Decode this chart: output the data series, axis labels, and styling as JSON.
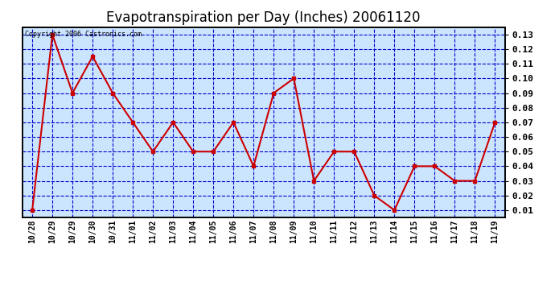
{
  "title": "Evapotranspiration per Day (Inches) 20061120",
  "copyright_text": "Copyright 2006 Castronics.com",
  "x_labels": [
    "10/28",
    "10/29",
    "10/29",
    "10/30",
    "10/31",
    "11/01",
    "11/02",
    "11/03",
    "11/04",
    "11/05",
    "11/06",
    "11/07",
    "11/08",
    "11/09",
    "11/10",
    "11/11",
    "11/12",
    "11/13",
    "11/14",
    "11/15",
    "11/16",
    "11/17",
    "11/18",
    "11/19"
  ],
  "y_values": [
    0.01,
    0.13,
    0.09,
    0.115,
    0.09,
    0.07,
    0.05,
    0.07,
    0.05,
    0.05,
    0.07,
    0.04,
    0.09,
    0.1,
    0.03,
    0.05,
    0.05,
    0.02,
    0.01,
    0.04,
    0.04,
    0.03,
    0.03,
    0.07
  ],
  "line_color": "#cc0000",
  "marker_color": "#cc0000",
  "bg_color": "#cce5ff",
  "grid_color": "#0000cc",
  "title_fontsize": 12,
  "ylim_min": 0.01,
  "ylim_max": 0.13,
  "yticks": [
    0.01,
    0.02,
    0.03,
    0.04,
    0.05,
    0.06,
    0.07,
    0.08,
    0.09,
    0.1,
    0.11,
    0.12,
    0.13
  ]
}
